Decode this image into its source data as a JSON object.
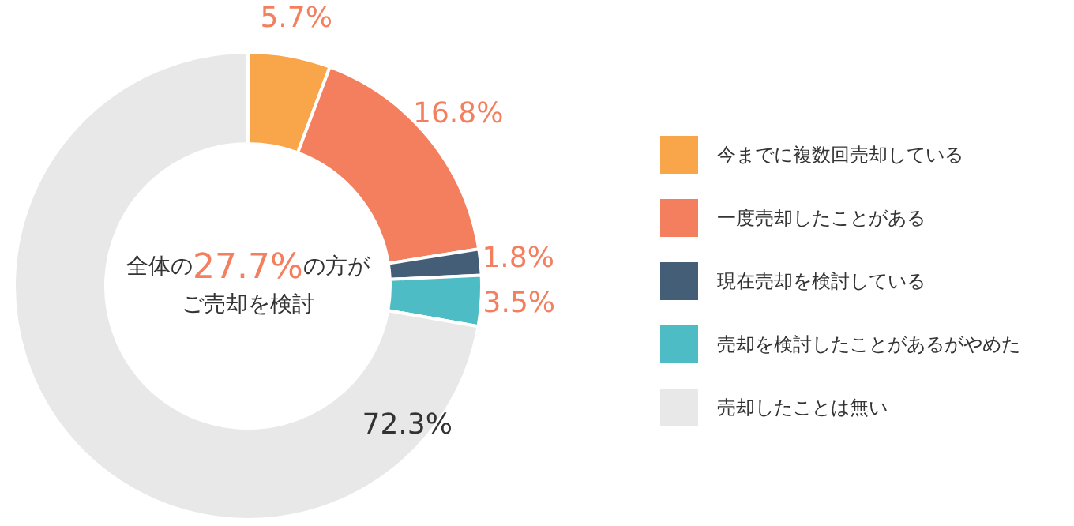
{
  "chart_data": {
    "type": "donut",
    "categories": [
      "今までに複数回売却している",
      "一度売却したことがある",
      "現在売却を検討している",
      "売却を検討したことがあるがやめた",
      "売却したことは無い"
    ],
    "values": [
      5.7,
      16.8,
      1.8,
      3.5,
      72.3
    ],
    "colors": [
      "#f9a54a",
      "#f47f5f",
      "#455e78",
      "#4dbcc4",
      "#e8e8e8"
    ],
    "value_labels": [
      "5.7%",
      "16.8%",
      "1.8%",
      "3.5%",
      "72.3%"
    ],
    "annotations": [
      "全体の27.7%の方が",
      "ご売却を検討"
    ],
    "legend": "right"
  }
}
